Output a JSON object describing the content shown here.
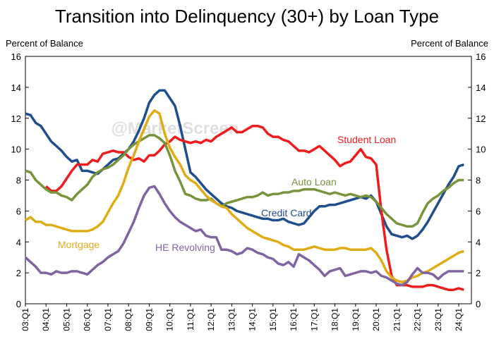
{
  "chart_data": {
    "type": "line",
    "title": "Transition into Delinquency (30+) by Loan Type",
    "y_label": "Percent of Balance",
    "y2_label": "Percent of Balance",
    "watermark": "@MarketScreen",
    "categories": [
      "03:Q1",
      null,
      null,
      null,
      "04:Q1",
      null,
      null,
      null,
      "05:Q1",
      null,
      null,
      null,
      "06:Q1",
      null,
      null,
      null,
      "07:Q1",
      null,
      null,
      null,
      "08:Q1",
      null,
      null,
      null,
      "09:Q1",
      null,
      null,
      null,
      "10:Q1",
      null,
      null,
      null,
      "11:Q1",
      null,
      null,
      null,
      "12:Q1",
      null,
      null,
      null,
      "13:Q1",
      null,
      null,
      null,
      "14:Q1",
      null,
      null,
      null,
      "15:Q1",
      null,
      null,
      null,
      "16:Q1",
      null,
      null,
      null,
      "17:Q1",
      null,
      null,
      null,
      "18:Q1",
      null,
      null,
      null,
      "19:Q1",
      null,
      null,
      null,
      "20:Q1",
      null,
      null,
      null,
      "21:Q1",
      null,
      null,
      null,
      "22:Q1",
      null,
      null,
      null,
      "23:Q1",
      null,
      null,
      null,
      "24:Q1",
      null
    ],
    "ylim": [
      0,
      16
    ],
    "yticks": [
      0,
      2,
      4,
      6,
      8,
      10,
      12,
      14,
      16
    ],
    "y2lim": [
      0,
      16
    ],
    "y2ticks": [
      0,
      2,
      4,
      6,
      8,
      10,
      12,
      14,
      16
    ],
    "series": [
      {
        "name": "Credit Card",
        "color": "#1f4e8c",
        "values": [
          12.3,
          12.2,
          11.7,
          11.5,
          11.0,
          10.5,
          10.2,
          9.9,
          9.5,
          9.2,
          9.3,
          8.6,
          8.6,
          8.5,
          8.4,
          8.7,
          9.0,
          9.3,
          9.4,
          9.7,
          10.0,
          10.5,
          11.2,
          12.0,
          13.0,
          13.5,
          13.8,
          13.8,
          13.3,
          12.8,
          11.5,
          10.0,
          8.5,
          8.2,
          7.8,
          7.4,
          7.1,
          6.8,
          6.5,
          6.3,
          6.2,
          6.0,
          5.9,
          5.8,
          5.7,
          5.6,
          5.5,
          5.5,
          5.4,
          5.4,
          5.5,
          5.3,
          5.2,
          5.1,
          5.2,
          5.6,
          6.0,
          6.3,
          6.3,
          6.4,
          6.4,
          6.5,
          6.6,
          6.7,
          6.8,
          6.9,
          6.8,
          7.0,
          6.6,
          5.8,
          5.0,
          4.5,
          4.4,
          4.3,
          4.4,
          4.2,
          4.4,
          4.8,
          5.3,
          5.9,
          6.5,
          7.1,
          7.7,
          8.2,
          8.9,
          9.0
        ]
      },
      {
        "name": "Student Loan",
        "color": "#ee1c1c",
        "values": [
          null,
          null,
          null,
          null,
          7.6,
          7.3,
          7.3,
          7.6,
          8.1,
          8.6,
          9.0,
          9.0,
          9.0,
          9.3,
          9.2,
          9.7,
          9.8,
          9.9,
          9.8,
          9.8,
          9.5,
          9.3,
          9.4,
          9.2,
          9.6,
          9.6,
          9.9,
          10.3,
          10.5,
          10.8,
          10.6,
          10.5,
          10.4,
          10.5,
          10.4,
          10.6,
          10.5,
          10.8,
          11.0,
          11.2,
          11.4,
          11.1,
          11.1,
          11.3,
          11.5,
          11.5,
          11.4,
          11.0,
          10.8,
          10.8,
          10.6,
          10.5,
          10.2,
          9.9,
          9.9,
          9.8,
          10.0,
          10.2,
          9.9,
          9.6,
          9.3,
          8.9,
          9.1,
          9.2,
          9.6,
          10.0,
          9.5,
          9.4,
          9.0,
          6.0,
          3.5,
          1.8,
          1.2,
          1.2,
          1.2,
          1.1,
          1.1,
          1.1,
          1.2,
          1.2,
          1.1,
          1.0,
          0.9,
          0.9,
          1.0,
          0.9
        ]
      },
      {
        "name": "Auto Loan",
        "color": "#77933c",
        "values": [
          8.6,
          8.5,
          8.0,
          7.7,
          7.4,
          7.2,
          7.2,
          7.0,
          6.9,
          6.7,
          7.1,
          7.4,
          7.7,
          8.2,
          8.5,
          8.7,
          8.8,
          9.0,
          9.3,
          9.6,
          10.0,
          10.3,
          10.5,
          10.7,
          10.9,
          10.9,
          10.7,
          10.4,
          9.6,
          8.6,
          7.9,
          7.1,
          7.0,
          6.8,
          6.7,
          6.7,
          6.8,
          6.5,
          6.3,
          6.5,
          6.6,
          6.7,
          6.8,
          6.9,
          6.9,
          7.0,
          7.2,
          7.0,
          7.1,
          7.1,
          7.2,
          7.2,
          7.3,
          7.3,
          7.4,
          7.4,
          7.4,
          7.3,
          7.2,
          7.1,
          7.2,
          7.1,
          7.0,
          7.1,
          7.0,
          6.9,
          7.0,
          6.9,
          6.6,
          6.2,
          5.8,
          5.5,
          5.2,
          5.1,
          5.0,
          5.0,
          5.2,
          5.9,
          6.5,
          6.8,
          7.0,
          7.3,
          7.5,
          7.8,
          8.0,
          8.0
        ]
      },
      {
        "name": "Mortgage",
        "color": "#e0ac16",
        "values": [
          5.4,
          5.6,
          5.3,
          5.3,
          5.1,
          5.1,
          5.0,
          4.9,
          4.8,
          4.7,
          4.7,
          4.7,
          4.7,
          4.8,
          5.0,
          5.3,
          5.9,
          6.5,
          7.0,
          7.8,
          8.8,
          9.6,
          10.5,
          11.3,
          12.1,
          12.5,
          12.3,
          11.0,
          10.1,
          9.5,
          9.0,
          8.3,
          8.0,
          7.8,
          7.4,
          7.0,
          6.7,
          6.5,
          6.3,
          6.2,
          5.8,
          5.5,
          5.2,
          4.9,
          4.7,
          4.5,
          4.3,
          4.2,
          4.1,
          4.0,
          3.8,
          3.7,
          3.5,
          3.5,
          3.5,
          3.6,
          3.7,
          3.6,
          3.5,
          3.5,
          3.5,
          3.6,
          3.6,
          3.5,
          3.5,
          3.5,
          3.5,
          3.6,
          3.3,
          2.8,
          2.1,
          1.7,
          1.5,
          1.4,
          1.5,
          1.7,
          1.8,
          2.0,
          2.1,
          2.3,
          2.5,
          2.7,
          2.9,
          3.1,
          3.3,
          3.4
        ]
      },
      {
        "name": "HE Revolving",
        "color": "#8064a2",
        "values": [
          3.0,
          2.7,
          2.4,
          2.0,
          2.0,
          1.9,
          2.1,
          2.0,
          2.0,
          2.1,
          2.1,
          2.0,
          1.9,
          2.2,
          2.5,
          2.7,
          3.0,
          3.2,
          3.4,
          3.9,
          4.6,
          5.3,
          6.2,
          7.0,
          7.5,
          7.6,
          7.1,
          6.5,
          6.0,
          5.6,
          5.3,
          5.1,
          4.9,
          4.7,
          4.8,
          4.4,
          4.3,
          4.3,
          3.5,
          3.5,
          3.4,
          3.2,
          3.3,
          3.6,
          3.5,
          3.3,
          3.2,
          3.0,
          2.9,
          2.6,
          2.5,
          2.7,
          2.4,
          3.2,
          3.0,
          2.8,
          2.5,
          2.2,
          1.8,
          2.1,
          2.2,
          2.3,
          1.8,
          1.9,
          2.0,
          2.1,
          2.1,
          2.0,
          2.1,
          1.8,
          1.7,
          1.5,
          1.3,
          1.2,
          1.4,
          1.9,
          2.3,
          2.0,
          2.0,
          1.9,
          1.6,
          1.9,
          2.1,
          2.1,
          2.1,
          2.1
        ]
      }
    ]
  }
}
